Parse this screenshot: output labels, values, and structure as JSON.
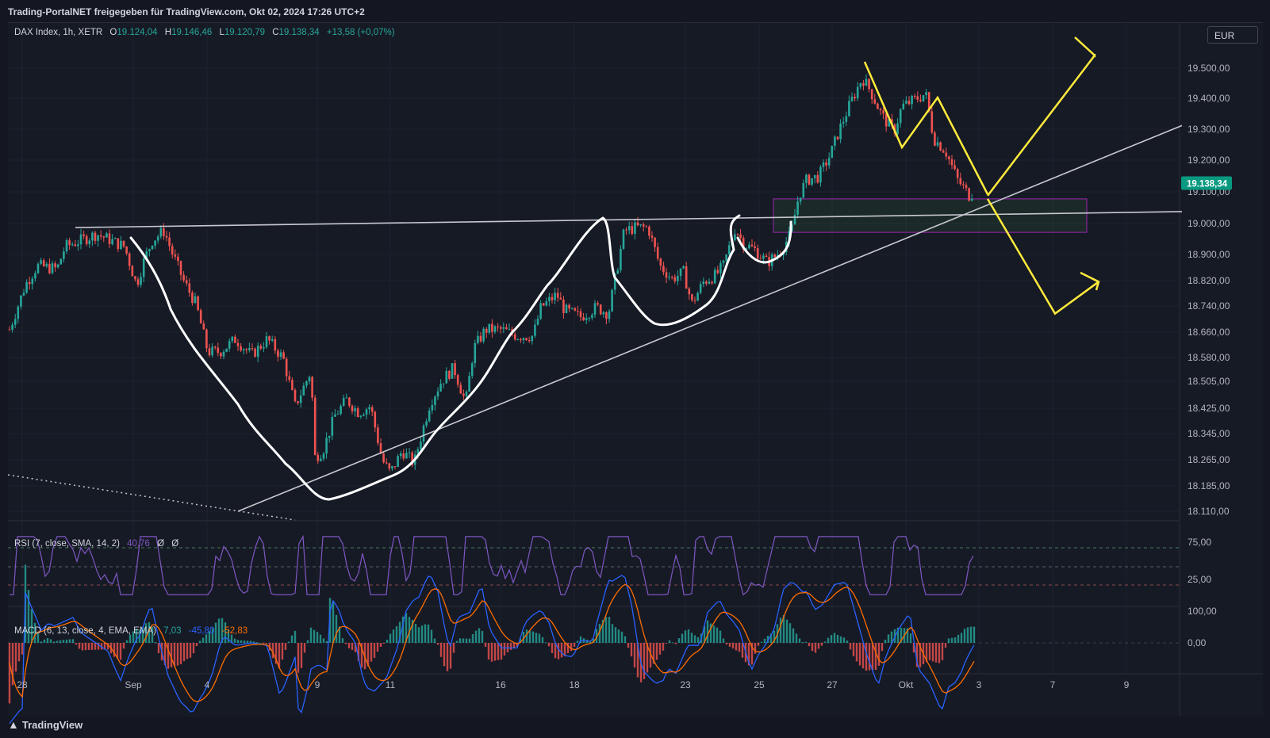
{
  "header": {
    "title": "Trading-PortalNET freigegeben für TradingView.com, Okt 02, 2024 17:26 UTC+2"
  },
  "legend": {
    "symbol": "DAX Index, 1h, XETR",
    "open_label": "O",
    "open": "19.124,04",
    "high_label": "H",
    "high": "19.146,46",
    "low_label": "L",
    "low": "19.120,79",
    "close_label": "C",
    "close": "19.138,34",
    "change": "+13,58 (+0,07%)"
  },
  "currency": "EUR",
  "price_tag": "19.138,34",
  "rsi": {
    "label": "RSI (7, close, SMA, 14, 2)",
    "value": "40,76",
    "sym1": "Ø",
    "sym2": "Ø",
    "ticks": [
      "75,00",
      "25,00"
    ]
  },
  "macd": {
    "label": "MACD (6, 13, close, 4, EMA, EMA)",
    "hist": "7,03",
    "macd": "-45,80",
    "signal": "-52,83",
    "ticks": [
      "100,00",
      "0,00"
    ]
  },
  "footer": {
    "brand": "TradingView"
  },
  "colors": {
    "up": "#26a69a",
    "down": "#ef5350",
    "rsi": "#7e57c2",
    "macd": "#2962ff",
    "signal": "#ff6d00",
    "annotation_yellow": "#ffeb3b",
    "zone_border": "#9c27b0"
  },
  "chart_data": {
    "type": "candlestick",
    "x_ticks": [
      "28",
      "Sep",
      "4",
      "9",
      "11",
      "16",
      "18",
      "23",
      "25",
      "27",
      "Okt",
      "3",
      "7",
      "9"
    ],
    "y_ticks": [
      "19.500,00",
      "19.400,00",
      "19.300,00",
      "19.200,00",
      "19.100,00",
      "19.000,00",
      "18.900,00",
      "18.820,00",
      "18.740,00",
      "18.660,00",
      "18.580,00",
      "18.505,00",
      "18.425,00",
      "18.345,00",
      "18.265,00",
      "18.185,00",
      "18.110,00"
    ],
    "price_path": [
      [
        0,
        18680
      ],
      [
        20,
        18820
      ],
      [
        35,
        18880
      ],
      [
        60,
        18870
      ],
      [
        70,
        18940
      ],
      [
        90,
        18960
      ],
      [
        110,
        18980
      ],
      [
        145,
        18940
      ],
      [
        160,
        18820
      ],
      [
        170,
        18900
      ],
      [
        180,
        18960
      ],
      [
        195,
        18990
      ],
      [
        205,
        18920
      ],
      [
        220,
        18830
      ],
      [
        235,
        18760
      ],
      [
        250,
        18610
      ],
      [
        265,
        18610
      ],
      [
        285,
        18650
      ],
      [
        305,
        18600
      ],
      [
        325,
        18650
      ],
      [
        345,
        18590
      ],
      [
        360,
        18440
      ],
      [
        380,
        18550
      ],
      [
        385,
        18280
      ],
      [
        395,
        18300
      ],
      [
        410,
        18410
      ],
      [
        425,
        18460
      ],
      [
        440,
        18420
      ],
      [
        455,
        18440
      ],
      [
        470,
        18270
      ],
      [
        480,
        18230
      ],
      [
        495,
        18300
      ],
      [
        510,
        18260
      ],
      [
        515,
        18310
      ],
      [
        530,
        18450
      ],
      [
        545,
        18520
      ],
      [
        560,
        18560
      ],
      [
        575,
        18450
      ],
      [
        585,
        18620
      ],
      [
        600,
        18680
      ],
      [
        620,
        18680
      ],
      [
        640,
        18660
      ],
      [
        660,
        18660
      ],
      [
        670,
        18750
      ],
      [
        690,
        18790
      ],
      [
        700,
        18740
      ],
      [
        720,
        18720
      ],
      [
        740,
        18750
      ],
      [
        755,
        18730
      ],
      [
        765,
        18860
      ],
      [
        775,
        18990
      ],
      [
        790,
        19000
      ],
      [
        805,
        19000
      ],
      [
        820,
        18880
      ],
      [
        835,
        18840
      ],
      [
        850,
        18860
      ],
      [
        860,
        18760
      ],
      [
        875,
        18830
      ],
      [
        890,
        18850
      ],
      [
        900,
        18880
      ],
      [
        915,
        19000
      ],
      [
        925,
        18950
      ],
      [
        940,
        18930
      ],
      [
        955,
        18890
      ],
      [
        970,
        18920
      ],
      [
        985,
        18980
      ],
      [
        995,
        19100
      ],
      [
        1005,
        19150
      ],
      [
        1020,
        19160
      ],
      [
        1035,
        19230
      ],
      [
        1045,
        19300
      ],
      [
        1060,
        19390
      ],
      [
        1075,
        19470
      ],
      [
        1085,
        19430
      ],
      [
        1100,
        19350
      ],
      [
        1115,
        19300
      ],
      [
        1125,
        19380
      ],
      [
        1140,
        19400
      ],
      [
        1155,
        19420
      ],
      [
        1165,
        19280
      ],
      [
        1180,
        19240
      ],
      [
        1195,
        19150
      ],
      [
        1210,
        19100
      ],
      [
        1225,
        19138
      ]
    ],
    "annotations": {
      "resistance_line": {
        "from": [
          95,
          19000
        ],
        "to": [
          1490,
          19050
        ]
      },
      "support_line": {
        "from": [
          300,
          18110
        ],
        "to": [
          1490,
          19320
        ]
      },
      "zone": {
        "from": [
          975,
          18985
        ],
        "to": [
          1370,
          19090
        ]
      },
      "scenario_up": [
        [
          1245,
          19100
        ],
        [
          1380,
          19540
        ]
      ],
      "scenario_down": [
        [
          1245,
          19090
        ],
        [
          1330,
          18730
        ],
        [
          1385,
          18830
        ]
      ]
    }
  }
}
